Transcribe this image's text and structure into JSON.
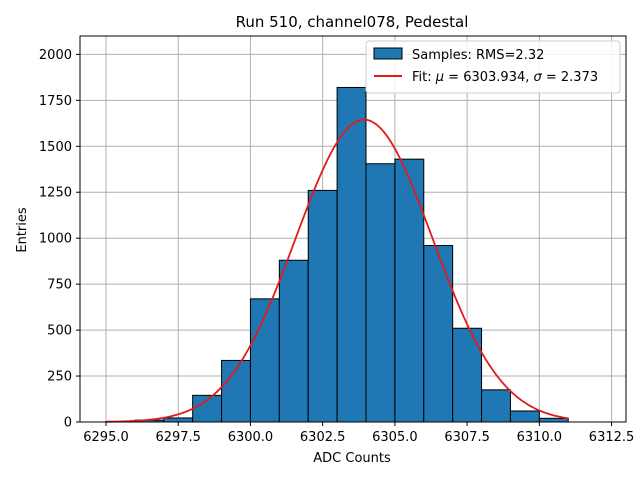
{
  "chart_data": {
    "type": "bar",
    "title": "Run 510, channel078, Pedestal",
    "xlabel": "ADC Counts",
    "ylabel": "Entries",
    "xlim": [
      6294.1,
      6313.0
    ],
    "ylim": [
      0,
      2100
    ],
    "x_ticks": [
      6295.0,
      6297.5,
      6300.0,
      6302.5,
      6305.0,
      6307.5,
      6310.0,
      6312.5
    ],
    "x_tick_labels": [
      "6295.0",
      "6297.5",
      "6300.0",
      "6302.5",
      "6305.0",
      "6307.5",
      "6310.0",
      "6312.5"
    ],
    "y_ticks": [
      0,
      250,
      500,
      750,
      1000,
      1250,
      1500,
      1750,
      2000
    ],
    "y_tick_labels": [
      "0",
      "250",
      "500",
      "750",
      "1000",
      "1250",
      "1500",
      "1750",
      "2000"
    ],
    "grid": true,
    "legend_position": "top-right",
    "bin_width": 1,
    "series": [
      {
        "name": "Samples: RMS=2.32",
        "kind": "histogram",
        "color": "#1f77b4",
        "edge_color": "#000000",
        "bin_starts": [
          6295,
          6296,
          6297,
          6298,
          6299,
          6300,
          6301,
          6302,
          6303,
          6304,
          6305,
          6306,
          6307,
          6308,
          6309,
          6310
        ],
        "values": [
          3,
          10,
          22,
          145,
          335,
          670,
          880,
          1260,
          1820,
          1405,
          1430,
          960,
          510,
          175,
          60,
          20
        ]
      },
      {
        "name": "Fit: μ = 6303.934, σ = 2.373",
        "kind": "gaussian",
        "color": "#e31a1c",
        "mu": 6303.934,
        "sigma": 2.373,
        "amplitude": 1645,
        "x_range": [
          6295,
          6311
        ]
      }
    ],
    "legend": {
      "entries": [
        {
          "prefix": "Samples: RMS=2.32"
        },
        {
          "prefix": "Fit: ",
          "mu_sym": "μ",
          "mu_rest": " = 6303.934, ",
          "sigma_sym": "σ",
          "sigma_rest": " = 2.373"
        }
      ]
    }
  }
}
